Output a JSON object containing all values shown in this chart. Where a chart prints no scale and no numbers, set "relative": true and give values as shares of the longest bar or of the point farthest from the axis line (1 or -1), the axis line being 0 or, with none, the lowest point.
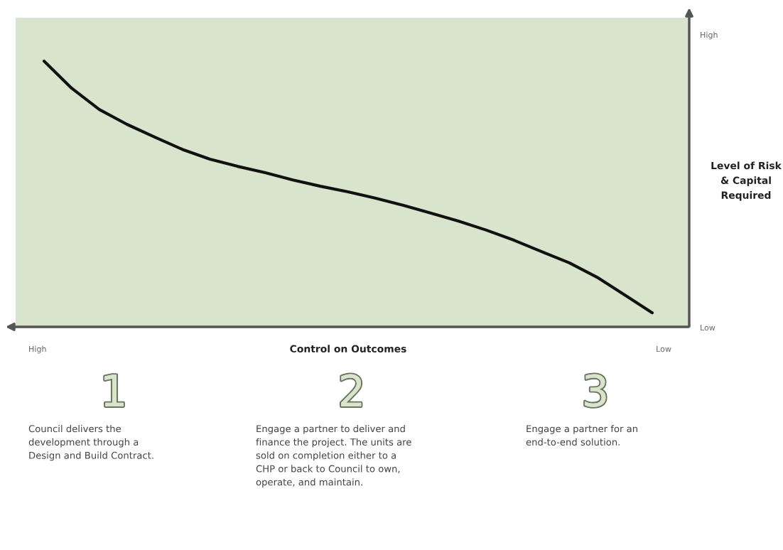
{
  "chart_data": {
    "type": "line",
    "relative": true,
    "xlabel": "Control on Outcomes",
    "ylabel": "Level of Risk\n& Capital\nRequired",
    "categories": [
      null,
      null,
      null,
      null,
      null,
      null,
      null,
      null,
      null,
      null,
      null,
      null,
      null,
      null,
      null,
      null,
      null,
      null,
      null,
      null,
      null,
      null,
      null
    ],
    "series": [
      {
        "color": "#111111",
        "values": [
          1,
          0.898,
          0.818,
          0.762,
          0.714,
          0.668,
          0.631,
          0.604,
          0.58,
          0.553,
          0.529,
          0.508,
          0.484,
          0.457,
          0.428,
          0.398,
          0.364,
          0.326,
          0.283,
          0.241,
          0.187,
          0.12,
          0.053
        ]
      }
    ],
    "annotations": [
      "High",
      "Low",
      "High",
      "Low",
      "1",
      "Council delivers the\ndevelopment through a\nDesign and Build Contract.",
      "2",
      "Engage a partner to deliver and\nfinance the project. The units are\nsold on completion either to a\nCHP or back to Council to own,\noperate, and maintain.",
      "3",
      "Engage a partner for an\nend-to-end solution."
    ],
    "marker": "none",
    "line_style": "solid",
    "legend": false
  }
}
